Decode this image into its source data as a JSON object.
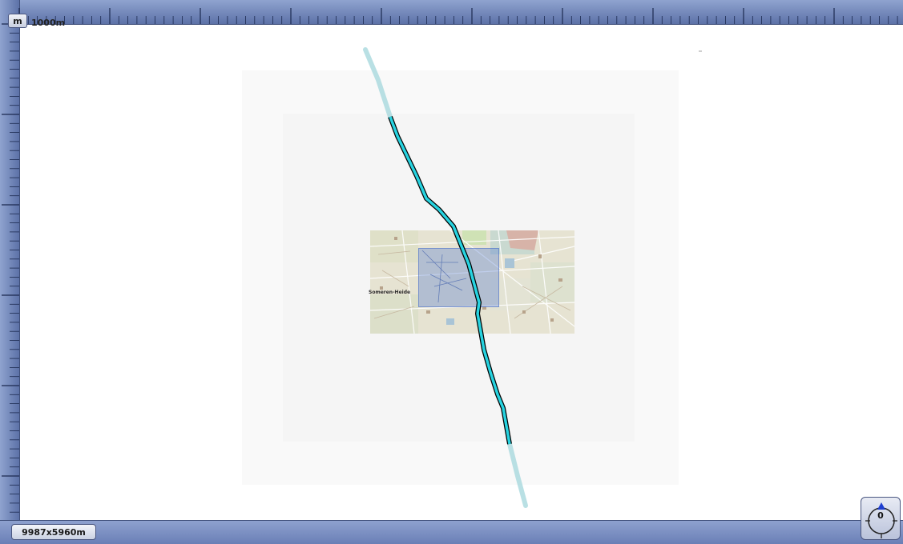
{
  "toolbar": {
    "unit_label": "m",
    "scale_label": "1000m"
  },
  "map": {
    "place_label": "Someren-Heide"
  },
  "status": {
    "canvas_size": "9987x5960m"
  },
  "compass": {
    "rotation": "0"
  },
  "colors": {
    "route_fill": "#27d3e0",
    "route_casing": "#000000",
    "ruler": "#7386bd",
    "selection": "#5078d2"
  }
}
